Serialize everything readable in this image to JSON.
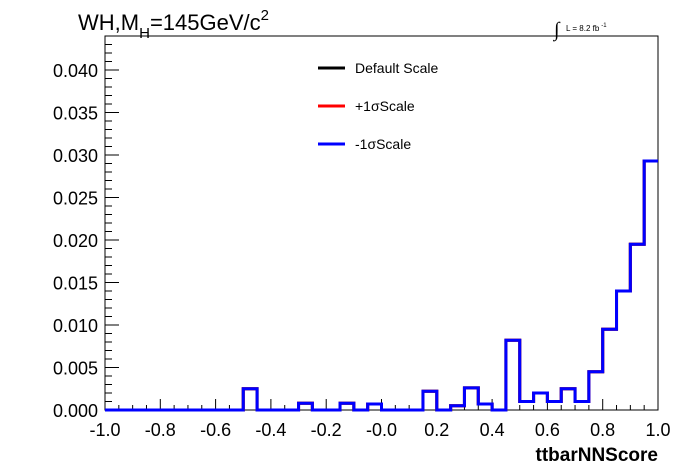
{
  "chart_data": {
    "type": "line",
    "title": {
      "prefix": "WH,M",
      "sub": "H",
      "suffix": "=145GeV/c",
      "sup": "2"
    },
    "luminosity": {
      "integral": "∫",
      "text": "L = 8.2 fb",
      "sup": "-1"
    },
    "xlabel": "ttbarNNScore",
    "ylabel": "",
    "xlim": [
      -1.0,
      1.0
    ],
    "ylim": [
      0.0,
      0.044
    ],
    "x_ticks": [
      "-1.0",
      "-0.8",
      "-0.6",
      "-0.4",
      "-0.2",
      "-0.0",
      "0.2",
      "0.4",
      "0.6",
      "0.8",
      "1.0"
    ],
    "y_ticks": [
      "0.000",
      "0.005",
      "0.010",
      "0.015",
      "0.020",
      "0.025",
      "0.030",
      "0.035",
      "0.040"
    ],
    "bin_edges": [
      -1.0,
      -0.95,
      -0.9,
      -0.85,
      -0.8,
      -0.75,
      -0.7,
      -0.65,
      -0.6,
      -0.55,
      -0.5,
      -0.45,
      -0.4,
      -0.35,
      -0.3,
      -0.25,
      -0.2,
      -0.15,
      -0.1,
      -0.05,
      0.0,
      0.05,
      0.1,
      0.15,
      0.2,
      0.25,
      0.3,
      0.35,
      0.4,
      0.45,
      0.5,
      0.55,
      0.6,
      0.65,
      0.7,
      0.75,
      0.8,
      0.85,
      0.9,
      0.95,
      1.0
    ],
    "series": [
      {
        "name": "Default Scale",
        "color": "#000000",
        "values": [
          0,
          0,
          0,
          0,
          0,
          0,
          0,
          0,
          0,
          0,
          0.0025,
          0,
          0,
          0,
          0.0008,
          0,
          0,
          0.0008,
          0,
          0.0007,
          0,
          0,
          0,
          0.0022,
          0,
          0.0005,
          0.0026,
          0.0007,
          0,
          0.0082,
          0.001,
          0.002,
          0.001,
          0.0025,
          0.001,
          0.0045,
          0.0095,
          0.014,
          0.0195,
          0.0293
        ]
      },
      {
        "name": "+1σScale",
        "color": "#ff0000",
        "values": [
          0,
          0,
          0,
          0,
          0,
          0,
          0,
          0,
          0,
          0,
          0.0025,
          0,
          0,
          0,
          0.0008,
          0,
          0,
          0.0008,
          0,
          0.0007,
          0,
          0,
          0,
          0.0022,
          0,
          0.0005,
          0.0026,
          0.0007,
          0,
          0.0082,
          0.001,
          0.002,
          0.001,
          0.0025,
          0.001,
          0.0045,
          0.0095,
          0.014,
          0.0195,
          0.0293
        ]
      },
      {
        "name": "-1σScale",
        "color": "#0000ff",
        "values": [
          0,
          0,
          0,
          0,
          0,
          0,
          0,
          0,
          0,
          0,
          0.0025,
          0,
          0,
          0,
          0.0008,
          0,
          0,
          0.0008,
          0,
          0.0007,
          0,
          0,
          0,
          0.0022,
          0,
          0.0005,
          0.0026,
          0.0007,
          0,
          0.0082,
          0.001,
          0.002,
          0.001,
          0.0025,
          0.001,
          0.0045,
          0.0095,
          0.014,
          0.0195,
          0.0293
        ]
      }
    ],
    "legend": {
      "placement": "top-center",
      "entries": [
        "Default Scale",
        "+1σScale",
        "-1σScale"
      ]
    },
    "grid": false
  }
}
